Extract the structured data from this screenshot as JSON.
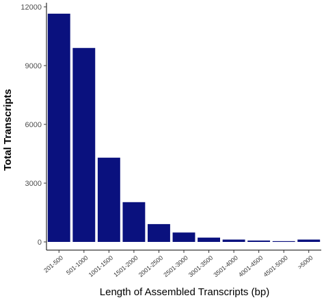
{
  "chart_data": {
    "type": "bar",
    "title": "",
    "xlabel": "Length of Assembled Transcripts (bp)",
    "ylabel": "Total Transcripts",
    "categories": [
      "201-500",
      "501-1000",
      "1001-1500",
      "1501-2000",
      "2001-2500",
      "2501-3000",
      "3001-3500",
      "3501-4000",
      "4001-4500",
      "4501-5000",
      ">5000"
    ],
    "values": [
      11650,
      9900,
      4300,
      2030,
      910,
      480,
      220,
      120,
      70,
      40,
      120
    ],
    "ylim": [
      0,
      12000
    ],
    "yticks": [
      0,
      3000,
      6000,
      9000,
      12000
    ],
    "grid": false,
    "bar_color": "#0a117e",
    "axis_color": "#000000"
  }
}
